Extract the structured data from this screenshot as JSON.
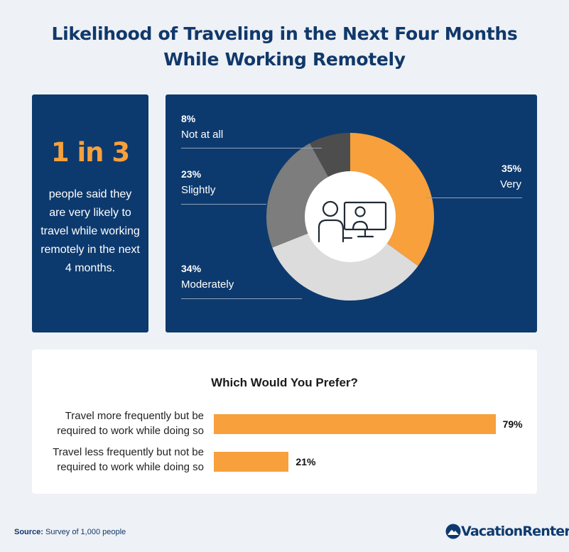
{
  "title": {
    "line1": "Likelihood of Traveling in the Next Four Months",
    "line2": "While Working Remotely"
  },
  "stat": {
    "big": "1 in 3",
    "text": "people said they are very likely to travel while working remotely in the next 4 months."
  },
  "chart_data": [
    {
      "type": "pie",
      "categories": [
        "Very",
        "Moderately",
        "Slightly",
        "Not at all"
      ],
      "values": [
        35,
        34,
        23,
        8
      ],
      "value_labels": [
        "35%",
        "34%",
        "23%",
        "8%"
      ],
      "colors": [
        "#f7a03c",
        "#dcdcdc",
        "#7d7d7d",
        "#4d4d4d"
      ],
      "donut": true,
      "center_icon": "remote-worker-computer-icon"
    },
    {
      "type": "bar",
      "orientation": "horizontal",
      "title": "Which Would You Prefer?",
      "categories": [
        "Travel more frequently but be required to work while doing so",
        "Travel less frequently but not be required to work while doing so"
      ],
      "category_lines": [
        [
          "Travel more frequently but be",
          "required to work while doing so"
        ],
        [
          "Travel less frequently but not be",
          "required to work while doing so"
        ]
      ],
      "values": [
        79,
        21
      ],
      "value_labels": [
        "79%",
        "21%"
      ],
      "xlim": [
        0,
        100
      ],
      "color": "#f7a03c"
    }
  ],
  "footer": {
    "source_label": "Source:",
    "source_text": "Survey of 1,000 people",
    "logo": "VacationRenter",
    "logo_icon": "mountain-logo-icon"
  }
}
